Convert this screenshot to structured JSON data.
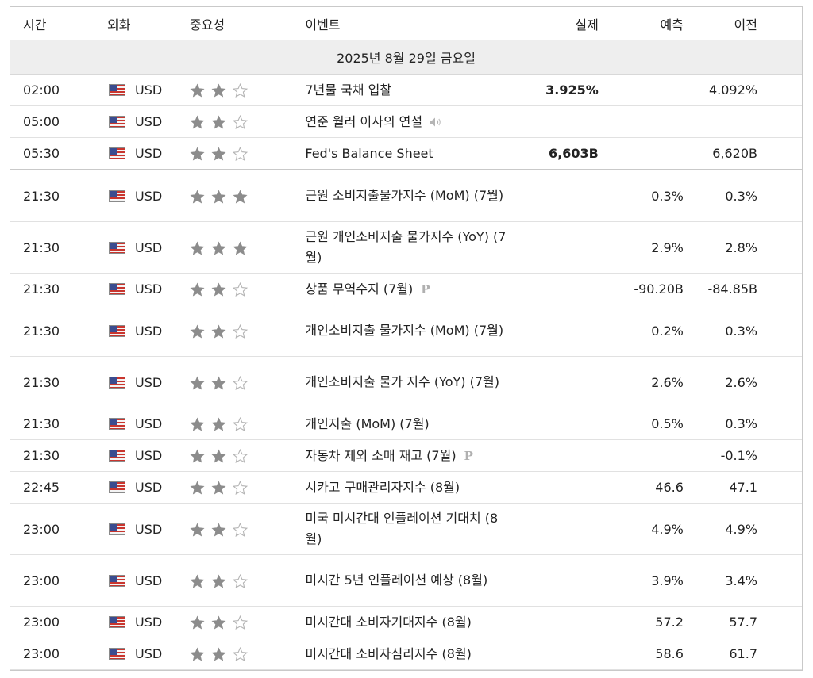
{
  "headers": {
    "time": "시간",
    "currency": "외화",
    "importance": "중요성",
    "event": "이벤트",
    "actual": "실제",
    "forecast": "예측",
    "previous": "이전"
  },
  "date_label": "2025년 8월 29일 금요일",
  "colors": {
    "star_filled": "#8c8c8c",
    "star_empty": "#b5b5b5",
    "header_bg": "#eeeeee",
    "border": "#c9c9c9"
  },
  "events": [
    {
      "time": "02:00",
      "currency": "USD",
      "stars": 2,
      "event": "7년물 국채 입찰",
      "actual": "3.925%",
      "forecast": "",
      "previous": "4.092%",
      "tall": false,
      "sound": false,
      "prelim": false
    },
    {
      "time": "05:00",
      "currency": "USD",
      "stars": 2,
      "event": "연준 월러 이사의 연설",
      "actual": "",
      "forecast": "",
      "previous": "",
      "tall": false,
      "sound": true,
      "prelim": false
    },
    {
      "time": "05:30",
      "currency": "USD",
      "stars": 2,
      "event": "Fed's Balance Sheet",
      "actual": "6,603B",
      "forecast": "",
      "previous": "6,620B",
      "tall": false,
      "sound": false,
      "prelim": false,
      "separator": true
    },
    {
      "time": "21:30",
      "currency": "USD",
      "stars": 3,
      "event": "근원 소비지출물가지수 (MoM) (7월)",
      "actual": "",
      "forecast": "0.3%",
      "previous": "0.3%",
      "tall": true,
      "sound": false,
      "prelim": false
    },
    {
      "time": "21:30",
      "currency": "USD",
      "stars": 3,
      "event": "근원 개인소비지출 물가지수 (YoY) (7월)",
      "actual": "",
      "forecast": "2.9%",
      "previous": "2.8%",
      "tall": true,
      "sound": false,
      "prelim": false
    },
    {
      "time": "21:30",
      "currency": "USD",
      "stars": 2,
      "event": "상품 무역수지 (7월)",
      "actual": "",
      "forecast": "-90.20B",
      "previous": "-84.85B",
      "tall": false,
      "sound": false,
      "prelim": true
    },
    {
      "time": "21:30",
      "currency": "USD",
      "stars": 2,
      "event": "개인소비지출 물가지수 (MoM) (7월)",
      "actual": "",
      "forecast": "0.2%",
      "previous": "0.3%",
      "tall": true,
      "sound": false,
      "prelim": false
    },
    {
      "time": "21:30",
      "currency": "USD",
      "stars": 2,
      "event": "개인소비지출 물가 지수 (YoY) (7월)",
      "actual": "",
      "forecast": "2.6%",
      "previous": "2.6%",
      "tall": true,
      "sound": false,
      "prelim": false
    },
    {
      "time": "21:30",
      "currency": "USD",
      "stars": 2,
      "event": "개인지출 (MoM) (7월)",
      "actual": "",
      "forecast": "0.5%",
      "previous": "0.3%",
      "tall": false,
      "sound": false,
      "prelim": false
    },
    {
      "time": "21:30",
      "currency": "USD",
      "stars": 2,
      "event": "자동차 제외 소매 재고 (7월)",
      "actual": "",
      "forecast": "",
      "previous": "-0.1%",
      "tall": false,
      "sound": false,
      "prelim": true
    },
    {
      "time": "22:45",
      "currency": "USD",
      "stars": 2,
      "event": "시카고 구매관리자지수 (8월)",
      "actual": "",
      "forecast": "46.6",
      "previous": "47.1",
      "tall": false,
      "sound": false,
      "prelim": false
    },
    {
      "time": "23:00",
      "currency": "USD",
      "stars": 2,
      "event": "미국 미시간대 인플레이션 기대치 (8월)",
      "actual": "",
      "forecast": "4.9%",
      "previous": "4.9%",
      "tall": true,
      "sound": false,
      "prelim": false
    },
    {
      "time": "23:00",
      "currency": "USD",
      "stars": 2,
      "event": "미시간 5년 인플레이션 예상 (8월)",
      "actual": "",
      "forecast": "3.9%",
      "previous": "3.4%",
      "tall": true,
      "sound": false,
      "prelim": false
    },
    {
      "time": "23:00",
      "currency": "USD",
      "stars": 2,
      "event": "미시간대 소비자기대지수 (8월)",
      "actual": "",
      "forecast": "57.2",
      "previous": "57.7",
      "tall": false,
      "sound": false,
      "prelim": false
    },
    {
      "time": "23:00",
      "currency": "USD",
      "stars": 2,
      "event": "미시간대 소비자심리지수 (8월)",
      "actual": "",
      "forecast": "58.6",
      "previous": "61.7",
      "tall": false,
      "sound": false,
      "prelim": false
    }
  ],
  "prelim_mark": "P"
}
